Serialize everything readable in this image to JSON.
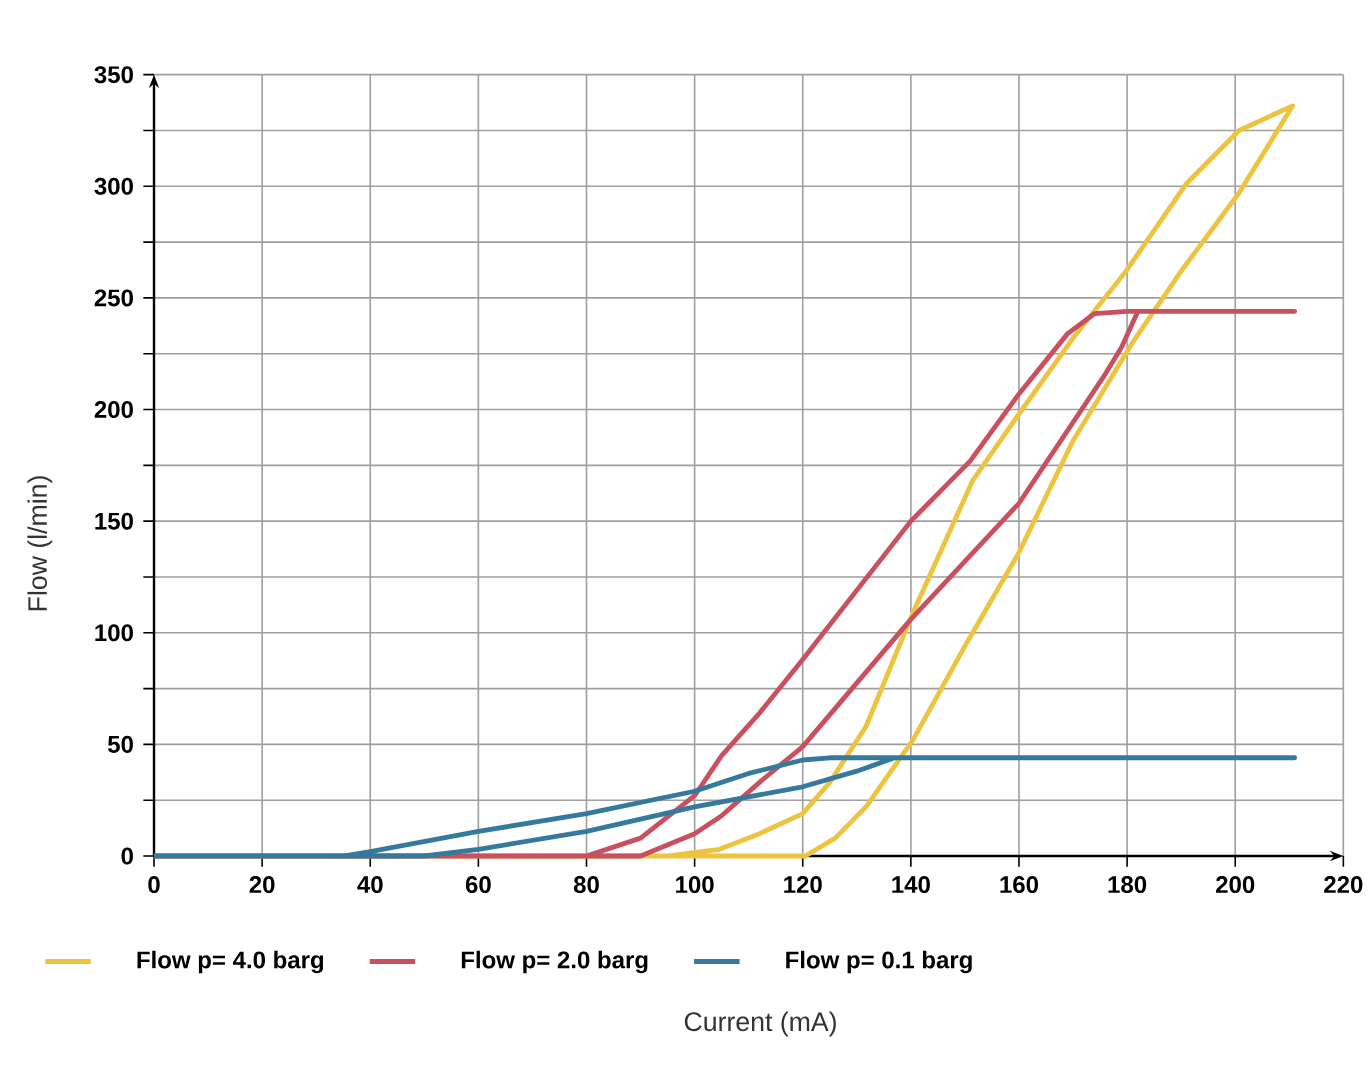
{
  "chart_data": {
    "type": "line",
    "xlabel": "Current (mA)",
    "ylabel": "Flow (l/min)",
    "xlim": [
      0,
      220
    ],
    "xticks": [
      0,
      20,
      40,
      60,
      80,
      100,
      120,
      140,
      160,
      180,
      200,
      220
    ],
    "ylim": [
      0,
      350
    ],
    "yticks": [
      0,
      {
        "value": 25,
        "label": null
      },
      50,
      {
        "value": 75,
        "label": null
      },
      100,
      {
        "value": 125,
        "label": null
      },
      150,
      {
        "value": 175,
        "label": null
      },
      200,
      {
        "value": 225,
        "label": null
      },
      250,
      {
        "value": 275,
        "label": null
      },
      300,
      {
        "value": 325,
        "label": null
      },
      350
    ],
    "grid": true,
    "legend": "bottom",
    "series": [
      {
        "name": "Flow p= 4.0 barg",
        "color": "#ecc440",
        "x": [
          0,
          120.5,
          126,
          131.7,
          140.4,
          150,
          160,
          170,
          181,
          190,
          200.7,
          210.6,
          200.7,
          190.9,
          179.8,
          170,
          160,
          151.4,
          140.4,
          131.7,
          125,
          120,
          112,
          104.6,
          95
        ],
        "values": [
          0,
          0,
          8,
          22,
          52,
          94,
          136,
          186,
          230,
          262,
          297,
          336,
          325,
          301,
          262,
          232,
          198,
          168,
          109,
          58,
          33,
          19,
          10,
          3,
          0
        ]
      },
      {
        "name": "Flow p= 2.0 barg",
        "color": "#c9505e",
        "x": [
          0,
          90,
          100,
          105,
          112,
          120,
          140,
          160,
          176,
          179,
          182,
          211,
          180,
          174,
          169,
          160,
          151,
          140,
          120,
          112,
          105,
          100,
          90,
          80
        ],
        "values": [
          0,
          0,
          10,
          18,
          33,
          49,
          106,
          158,
          216,
          228,
          244,
          244,
          244,
          243,
          234,
          207,
          177,
          150,
          88,
          64,
          45,
          27,
          8,
          0
        ]
      },
      {
        "name": "Flow p= 0.1 barg",
        "color": "#357a9e",
        "x": [
          0,
          50,
          60,
          80,
          100,
          120,
          130,
          137,
          211,
          125,
          120,
          110,
          100,
          80,
          60,
          40,
          35
        ],
        "values": [
          0,
          0,
          3,
          11,
          22,
          31,
          38,
          44,
          44,
          44,
          43,
          37,
          29,
          19,
          11,
          2,
          0
        ]
      }
    ]
  }
}
